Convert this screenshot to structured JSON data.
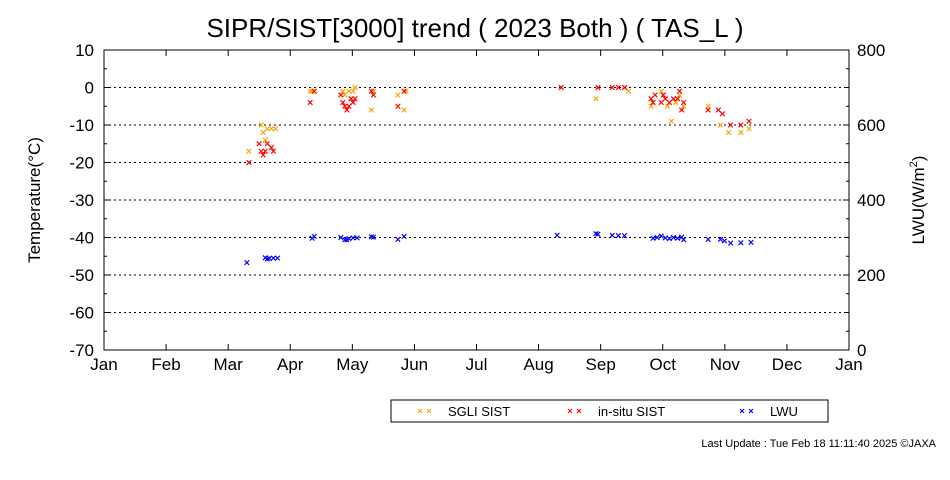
{
  "chart_data": {
    "type": "scatter",
    "title": "SIPR/SIST[3000] trend ( 2023 Both ) ( TAS_L )",
    "ylabel": "Temperature(°C)",
    "y2label_main": "LWU(W/m",
    "y2label_sup": "2",
    "y2label_end": ")",
    "ylim": [
      -70,
      10
    ],
    "y2lim": [
      0,
      800
    ],
    "yticks": [
      "10",
      "0",
      "-10",
      "-20",
      "-30",
      "-40",
      "-50",
      "-60",
      "-70"
    ],
    "y2ticks": [
      "800",
      "600",
      "400",
      "200",
      "0"
    ],
    "categories": [
      "Jan",
      "Feb",
      "Mar",
      "Apr",
      "May",
      "Jun",
      "Jul",
      "Aug",
      "Sep",
      "Oct",
      "Nov",
      "Dec",
      "Jan"
    ],
    "grid": "horizontal dotted",
    "legend_position": "bottom",
    "series": [
      {
        "name": "SGLI SIST",
        "color": "#FFA500",
        "axis": "left",
        "points": [
          [
            "2023-03-13",
            -17
          ],
          [
            "2023-03-19",
            -10
          ],
          [
            "2023-03-20",
            -12
          ],
          [
            "2023-03-21",
            -14
          ],
          [
            "2023-03-22",
            -11
          ],
          [
            "2023-03-24",
            -11
          ],
          [
            "2023-03-26",
            -11
          ],
          [
            "2023-04-12",
            -1
          ],
          [
            "2023-04-13",
            -1
          ],
          [
            "2023-04-14",
            -1
          ],
          [
            "2023-04-28",
            -1
          ],
          [
            "2023-04-29",
            -2
          ],
          [
            "2023-05-01",
            -1
          ],
          [
            "2023-05-02",
            -3
          ],
          [
            "2023-05-03",
            -1
          ],
          [
            "2023-05-04",
            0
          ],
          [
            "2023-05-12",
            -6
          ],
          [
            "2023-05-13",
            -1
          ],
          [
            "2023-05-25",
            -2
          ],
          [
            "2023-05-28",
            -6
          ],
          [
            "2023-05-29",
            -1
          ],
          [
            "2023-08-13",
            0
          ],
          [
            "2023-08-30",
            -3
          ],
          [
            "2023-08-31",
            0
          ],
          [
            "2023-09-13",
            0
          ],
          [
            "2023-09-15",
            -1
          ],
          [
            "2023-09-26",
            -5
          ],
          [
            "2023-09-27",
            -4
          ],
          [
            "2023-10-01",
            -1
          ],
          [
            "2023-10-02",
            -2
          ],
          [
            "2023-10-04",
            -5
          ],
          [
            "2023-10-06",
            -9
          ],
          [
            "2023-10-08",
            -4
          ],
          [
            "2023-10-10",
            -2
          ],
          [
            "2023-10-12",
            -5
          ],
          [
            "2023-10-24",
            -5
          ],
          [
            "2023-10-30",
            -10
          ],
          [
            "2023-11-03",
            -12
          ],
          [
            "2023-11-09",
            -12
          ],
          [
            "2023-11-13",
            -11
          ]
        ]
      },
      {
        "name": "in-situ SIST",
        "color": "#FF0000",
        "axis": "left",
        "points": [
          [
            "2023-03-13",
            -20
          ],
          [
            "2023-03-18",
            -15
          ],
          [
            "2023-03-19",
            -17
          ],
          [
            "2023-03-20",
            -18
          ],
          [
            "2023-03-21",
            -17
          ],
          [
            "2023-03-22",
            -15
          ],
          [
            "2023-03-24",
            -16
          ],
          [
            "2023-03-25",
            -17
          ],
          [
            "2023-04-12",
            -4
          ],
          [
            "2023-04-14",
            -1
          ],
          [
            "2023-04-27",
            -2
          ],
          [
            "2023-04-28",
            -4
          ],
          [
            "2023-04-29",
            -5
          ],
          [
            "2023-04-30",
            -6
          ],
          [
            "2023-05-01",
            -5
          ],
          [
            "2023-05-02",
            -3
          ],
          [
            "2023-05-03",
            -4
          ],
          [
            "2023-05-04",
            -3
          ],
          [
            "2023-05-12",
            -1
          ],
          [
            "2023-05-13",
            -2
          ],
          [
            "2023-05-25",
            -5
          ],
          [
            "2023-05-28",
            -1
          ],
          [
            "2023-08-13",
            0
          ],
          [
            "2023-08-31",
            0
          ],
          [
            "2023-09-07",
            0
          ],
          [
            "2023-09-10",
            0
          ],
          [
            "2023-09-13",
            0
          ],
          [
            "2023-09-26",
            -3
          ],
          [
            "2023-09-27",
            -4
          ],
          [
            "2023-09-28",
            -2
          ],
          [
            "2023-10-01",
            -4
          ],
          [
            "2023-10-02",
            -2
          ],
          [
            "2023-10-03",
            -3
          ],
          [
            "2023-10-05",
            -4
          ],
          [
            "2023-10-07",
            -3
          ],
          [
            "2023-10-09",
            -3
          ],
          [
            "2023-10-10",
            -1
          ],
          [
            "2023-10-11",
            -6
          ],
          [
            "2023-10-12",
            -4
          ],
          [
            "2023-10-24",
            -6
          ],
          [
            "2023-10-29",
            -6
          ],
          [
            "2023-10-31",
            -7
          ],
          [
            "2023-11-04",
            -10
          ],
          [
            "2023-11-09",
            -10
          ],
          [
            "2023-11-13",
            -9
          ]
        ]
      },
      {
        "name": "LWU",
        "color": "#0000FF",
        "axis": "right",
        "points": [
          [
            "2023-03-12",
            233
          ],
          [
            "2023-03-21",
            246
          ],
          [
            "2023-03-22",
            243
          ],
          [
            "2023-03-23",
            244
          ],
          [
            "2023-03-25",
            245
          ],
          [
            "2023-03-27",
            245
          ],
          [
            "2023-04-13",
            298
          ],
          [
            "2023-04-14",
            303
          ],
          [
            "2023-04-27",
            300
          ],
          [
            "2023-04-29",
            294
          ],
          [
            "2023-04-30",
            294
          ],
          [
            "2023-05-01",
            297
          ],
          [
            "2023-05-03",
            299
          ],
          [
            "2023-05-05",
            299
          ],
          [
            "2023-05-12",
            302
          ],
          [
            "2023-05-13",
            301
          ],
          [
            "2023-05-25",
            295
          ],
          [
            "2023-05-28",
            303
          ],
          [
            "2023-08-11",
            306
          ],
          [
            "2023-08-30",
            310
          ],
          [
            "2023-08-31",
            309
          ],
          [
            "2023-09-07",
            306
          ],
          [
            "2023-09-10",
            305
          ],
          [
            "2023-09-13",
            305
          ],
          [
            "2023-09-27",
            298
          ],
          [
            "2023-09-29",
            300
          ],
          [
            "2023-10-01",
            304
          ],
          [
            "2023-10-03",
            299
          ],
          [
            "2023-10-05",
            297
          ],
          [
            "2023-10-07",
            300
          ],
          [
            "2023-10-09",
            298
          ],
          [
            "2023-10-11",
            301
          ],
          [
            "2023-10-12",
            294
          ],
          [
            "2023-10-24",
            295
          ],
          [
            "2023-10-30",
            295
          ],
          [
            "2023-11-01",
            291
          ],
          [
            "2023-11-04",
            285
          ],
          [
            "2023-11-09",
            286
          ],
          [
            "2023-11-14",
            287
          ]
        ]
      }
    ]
  },
  "footer": {
    "last_update": "Last Update : Tue Feb 18 11:11:40 2025  ©JAXA"
  }
}
